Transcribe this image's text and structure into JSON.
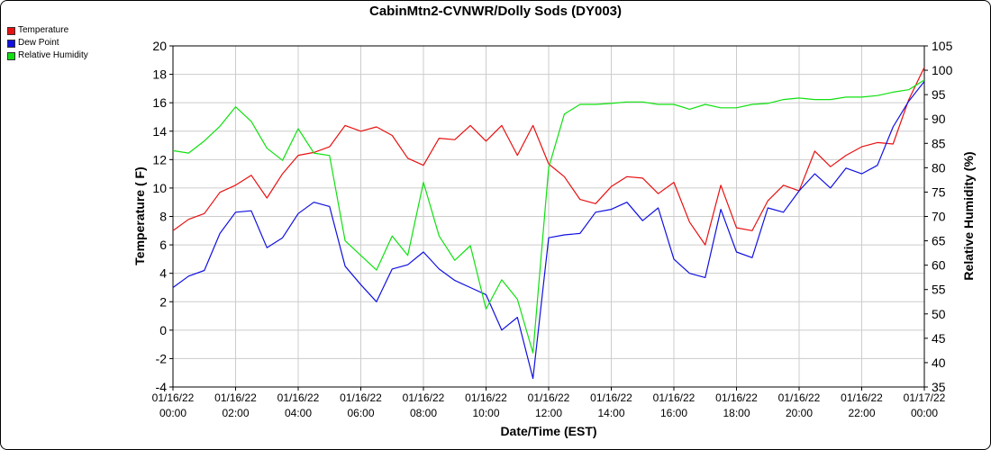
{
  "chart_data": {
    "type": "line",
    "title": "CabinMtn2-CVNWR/Dolly Sods (DY003)",
    "xlabel": "Date/Time (EST)",
    "ylabel_left": "Temperature ( F)",
    "ylabel_right": "Relative Humidity (%)",
    "ylim_left": [
      -4,
      20
    ],
    "ylim_right": [
      35,
      105
    ],
    "yticks_left": [
      "20",
      "18",
      "16",
      "14",
      "12",
      "10",
      "8",
      "6",
      "4",
      "2",
      "0",
      "-2",
      "-4"
    ],
    "yticks_right": [
      "105",
      "100",
      "95",
      "90",
      "85",
      "80",
      "75",
      "70",
      "65",
      "60",
      "55",
      "50",
      "45",
      "40",
      "35"
    ],
    "xlim_hours": [
      0,
      24
    ],
    "xticks": [
      {
        "date": "01/16/22",
        "time": "00:00"
      },
      {
        "date": "01/16/22",
        "time": "02:00"
      },
      {
        "date": "01/16/22",
        "time": "04:00"
      },
      {
        "date": "01/16/22",
        "time": "06:00"
      },
      {
        "date": "01/16/22",
        "time": "08:00"
      },
      {
        "date": "01/16/22",
        "time": "10:00"
      },
      {
        "date": "01/16/22",
        "time": "12:00"
      },
      {
        "date": "01/16/22",
        "time": "14:00"
      },
      {
        "date": "01/16/22",
        "time": "16:00"
      },
      {
        "date": "01/16/22",
        "time": "18:00"
      },
      {
        "date": "01/16/22",
        "time": "20:00"
      },
      {
        "date": "01/16/22",
        "time": "22:00"
      },
      {
        "date": "01/17/22",
        "time": "00:00"
      }
    ],
    "grid": true,
    "legend_position": "top-left",
    "series": [
      {
        "name": "Temperature",
        "axis": "left",
        "color": "#e81010",
        "x": [
          0,
          0.5,
          1,
          1.5,
          2,
          2.5,
          3,
          3.5,
          4,
          4.5,
          5,
          5.5,
          6,
          6.5,
          7,
          7.5,
          8,
          8.5,
          9,
          9.5,
          10,
          10.5,
          11,
          11.5,
          12,
          12.5,
          13,
          13.5,
          14,
          14.5,
          15,
          15.5,
          16,
          16.5,
          17,
          17.5,
          18,
          18.5,
          19,
          19.5,
          20,
          20.5,
          21,
          21.5,
          22,
          22.5,
          23,
          23.5,
          24
        ],
        "y": [
          7.0,
          7.8,
          8.2,
          9.7,
          10.2,
          10.9,
          9.3,
          11.0,
          12.3,
          12.5,
          12.9,
          14.4,
          14.0,
          14.3,
          13.7,
          12.1,
          11.6,
          13.5,
          13.4,
          14.4,
          13.3,
          14.4,
          12.3,
          14.4,
          11.7,
          10.8,
          9.2,
          8.9,
          10.1,
          10.8,
          10.7,
          9.6,
          10.4,
          7.6,
          6.0,
          10.2,
          7.2,
          7.0,
          9.1,
          10.2,
          9.8,
          12.6,
          11.5,
          12.3,
          12.9,
          13.2,
          13.1,
          16.2,
          18.5
        ]
      },
      {
        "name": "Dew Point",
        "axis": "left",
        "color": "#1010e0",
        "x": [
          0,
          0.5,
          1,
          1.5,
          2,
          2.5,
          3,
          3.5,
          4,
          4.5,
          5,
          5.5,
          6,
          6.5,
          7,
          7.5,
          8,
          8.5,
          9,
          9.5,
          10,
          10.5,
          11,
          11.5,
          12,
          12.5,
          13,
          13.5,
          14,
          14.5,
          15,
          15.5,
          16,
          16.5,
          17,
          17.5,
          18,
          18.5,
          19,
          19.5,
          20,
          20.5,
          21,
          21.5,
          22,
          22.5,
          23,
          23.5,
          24
        ],
        "y": [
          3.0,
          3.8,
          4.2,
          6.8,
          8.3,
          8.4,
          5.8,
          6.5,
          8.2,
          9.0,
          8.7,
          4.5,
          3.2,
          2.0,
          4.3,
          4.6,
          5.5,
          4.3,
          3.5,
          3.0,
          2.5,
          0.0,
          0.9,
          -3.4,
          6.5,
          6.7,
          6.8,
          8.3,
          8.5,
          9.0,
          7.7,
          8.6,
          5.0,
          4.0,
          3.7,
          8.5,
          5.5,
          5.1,
          8.6,
          8.3,
          9.8,
          11.0,
          10.0,
          11.4,
          11.0,
          11.6,
          14.3,
          16.1,
          17.5
        ]
      },
      {
        "name": "Relative Humidity",
        "axis": "right",
        "color": "#10e010",
        "x": [
          0,
          0.5,
          1,
          1.5,
          2,
          2.5,
          3,
          3.5,
          4,
          4.5,
          5,
          5.5,
          6,
          6.5,
          7,
          7.5,
          8,
          8.5,
          9,
          9.5,
          10,
          10.5,
          11,
          11.5,
          12,
          12.5,
          13,
          13.5,
          14,
          14.5,
          15,
          15.5,
          16,
          16.5,
          17,
          17.5,
          18,
          18.5,
          19,
          19.5,
          20,
          20.5,
          21,
          21.5,
          22,
          22.5,
          23,
          23.5,
          24
        ],
        "y": [
          83.5,
          83,
          85.5,
          88.5,
          92.5,
          89.5,
          84.0,
          81.5,
          88,
          83,
          82.5,
          65.0,
          62.0,
          59.0,
          66.0,
          62.0,
          77.0,
          66.0,
          61.0,
          64.0,
          51.0,
          57.0,
          53.0,
          42.0,
          80.0,
          91.0,
          93.0,
          93.0,
          93.2,
          93.5,
          93.5,
          93.0,
          93.0,
          92.0,
          93.0,
          92.3,
          92.3,
          93.0,
          93.2,
          94.0,
          94.3,
          94.0,
          94.0,
          94.5,
          94.5,
          94.8,
          95.5,
          96.0,
          98.0
        ]
      }
    ]
  }
}
